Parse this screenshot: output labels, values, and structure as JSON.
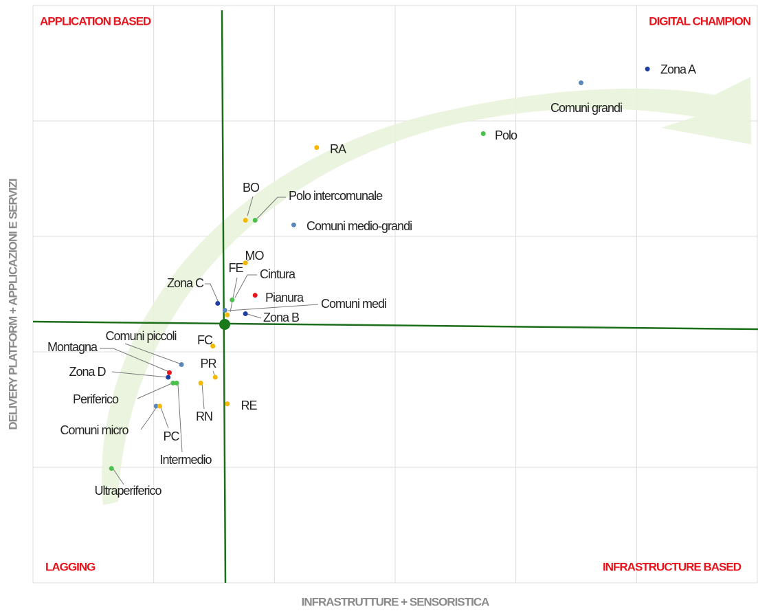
{
  "chart_data": {
    "type": "scatter",
    "quadrant_labels": {
      "top_left": "APPLICATION BASED",
      "top_right": "DIGITAL CHAMPION",
      "bottom_left": "LAGGING",
      "bottom_right": "INFRASTRUCTURE BASED"
    },
    "x_label": "INFRASTRUTTURE + SENSORISTICA",
    "y_label": "DELIVERY PLATFORM + APPLICAZIONI E SERVIZI",
    "xlim": [
      0,
      6
    ],
    "ylim": [
      0,
      5
    ],
    "xticks": [
      1,
      2,
      3,
      4,
      5
    ],
    "yticks": [
      1,
      2,
      3,
      4
    ],
    "grid": true,
    "point_labels": [
      "Zona A",
      "Comuni grandi",
      "Polo",
      "RA",
      "BO",
      "Polo intercomunale",
      "Comuni medio-grandi",
      "MO",
      "FE",
      "Cintura",
      "Zona C",
      "Pianura",
      "Comuni medi",
      "Zona B",
      "FC",
      "Comuni piccoli",
      "Montagna",
      "Zona D",
      "Periferico",
      "Intermedio",
      "PR",
      "RN",
      "RE",
      "Comuni micro",
      "PC",
      "Ultraperiferico"
    ],
    "x": [
      5.09,
      4.54,
      3.73,
      2.35,
      1.76,
      1.84,
      2.16,
      1.76,
      1.61,
      1.65,
      1.53,
      1.84,
      1.59,
      1.76,
      1.49,
      1.23,
      1.13,
      1.12,
      1.16,
      1.19,
      1.51,
      1.39,
      1.61,
      1.02,
      1.05,
      0.65
    ],
    "values": [
      4.45,
      4.33,
      3.89,
      3.77,
      3.14,
      3.14,
      3.1,
      2.77,
      2.32,
      2.45,
      2.42,
      2.49,
      2.36,
      2.33,
      2.05,
      1.89,
      1.82,
      1.78,
      1.73,
      1.73,
      1.78,
      1.73,
      1.55,
      1.53,
      1.53,
      0.99
    ],
    "colors": [
      "#1f3fa0",
      "#5b86b8",
      "#4cc04c",
      "#f5b800",
      "#f5b800",
      "#4cc04c",
      "#5b86b8",
      "#f5b800",
      "#f5b800",
      "#4cc04c",
      "#1f3fa0",
      "#e8141c",
      "#5b86b8",
      "#1f3fa0",
      "#f5b800",
      "#5b86b8",
      "#e8141c",
      "#1f3fa0",
      "#4cc04c",
      "#4cc04c",
      "#f5b800",
      "#f5b800",
      "#f5b800",
      "#5b86b8",
      "#f5b800",
      "#4cc04c"
    ]
  }
}
